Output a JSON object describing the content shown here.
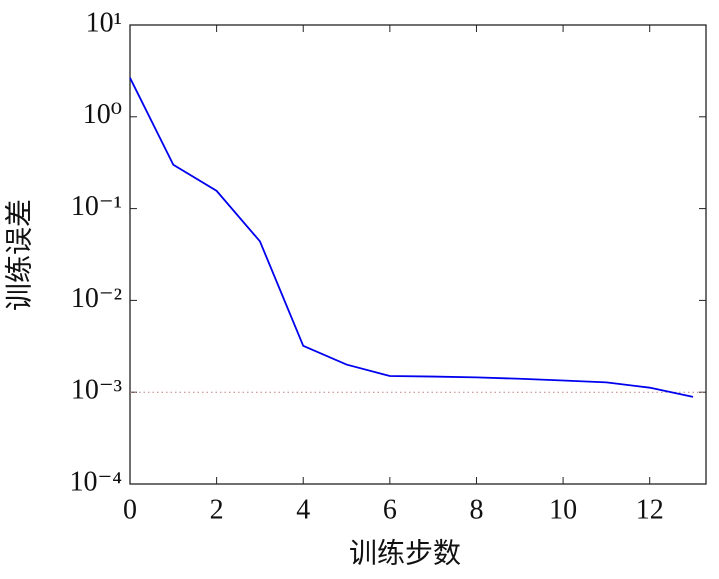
{
  "chart_data": {
    "type": "line",
    "xlabel": "训练步数",
    "ylabel": "训练误差",
    "x": [
      0,
      1,
      2,
      3,
      4,
      5,
      6,
      7,
      8,
      9,
      10,
      11,
      12,
      13
    ],
    "series": [
      {
        "name": null,
        "color": "#0000ee",
        "values": [
          2.66,
          0.3,
          0.156,
          0.044,
          0.0032,
          0.002,
          0.0015,
          0.00148,
          0.00145,
          0.0014,
          0.00134,
          0.00128,
          0.00112,
          0.00089
        ]
      }
    ],
    "xlim": [
      0,
      13.3
    ],
    "ylim": [
      0.0001,
      10
    ],
    "yscale": "log",
    "xticks": [
      0,
      2,
      4,
      6,
      8,
      10,
      12
    ],
    "yticks": [
      {
        "value": 10,
        "label": "10¹"
      },
      {
        "value": 1,
        "label": "10⁰"
      },
      {
        "value": 0.1,
        "label": "10⁻¹"
      },
      {
        "value": 0.01,
        "label": "10⁻²"
      },
      {
        "value": 0.001,
        "label": "10⁻³"
      },
      {
        "value": 0.0001,
        "label": "10⁻⁴"
      }
    ],
    "hline": {
      "value": 0.001,
      "color": "#c08080"
    }
  }
}
